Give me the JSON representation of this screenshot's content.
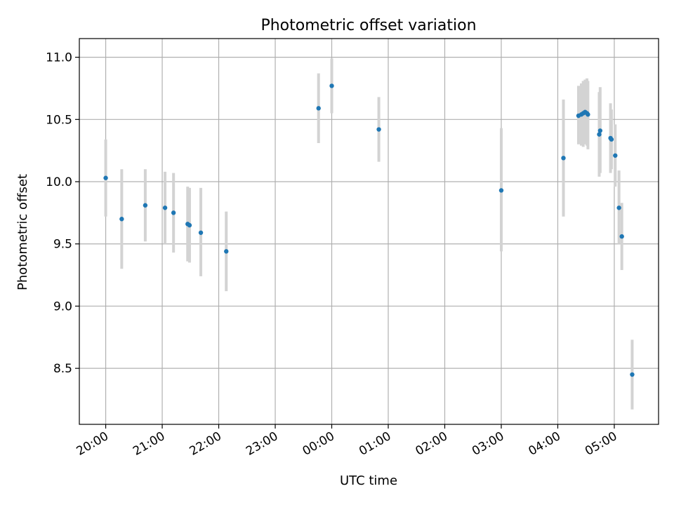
{
  "chart_data": {
    "type": "scatter",
    "title": "Photometric offset variation",
    "xlabel": "UTC time",
    "ylabel": "Photometric offset",
    "x_kind": "time-of-day, crossing midnight",
    "x_ticks": [
      "20:00",
      "21:00",
      "22:00",
      "23:00",
      "00:00",
      "01:00",
      "02:00",
      "03:00",
      "04:00",
      "05:00"
    ],
    "y_ticks": [
      "8.5",
      "9.0",
      "9.5",
      "10.0",
      "10.5",
      "11.0"
    ],
    "xlim": [
      "19:32",
      "05:47"
    ],
    "ylim": [
      8.05,
      11.15
    ],
    "grid": true,
    "colors": {
      "point": "#1f77b4",
      "errorbar": "#d3d3d3",
      "grid": "#b0b0b0"
    },
    "points": [
      {
        "time": "20:00",
        "y": 10.03,
        "ylo": 9.72,
        "yhi": 10.34
      },
      {
        "time": "20:17",
        "y": 9.7,
        "ylo": 9.3,
        "yhi": 10.1
      },
      {
        "time": "20:42",
        "y": 9.81,
        "ylo": 9.52,
        "yhi": 10.1
      },
      {
        "time": "21:03",
        "y": 9.79,
        "ylo": 9.5,
        "yhi": 10.08
      },
      {
        "time": "21:12",
        "y": 9.75,
        "ylo": 9.43,
        "yhi": 10.07
      },
      {
        "time": "21:27",
        "y": 9.66,
        "ylo": 9.36,
        "yhi": 9.96
      },
      {
        "time": "21:29",
        "y": 9.65,
        "ylo": 9.35,
        "yhi": 9.95
      },
      {
        "time": "21:41",
        "y": 9.59,
        "ylo": 9.24,
        "yhi": 9.95
      },
      {
        "time": "22:08",
        "y": 9.44,
        "ylo": 9.12,
        "yhi": 9.76
      },
      {
        "time": "23:46",
        "y": 10.59,
        "ylo": 10.31,
        "yhi": 10.87
      },
      {
        "time": "00:00",
        "y": 10.77,
        "ylo": 10.55,
        "yhi": 10.99
      },
      {
        "time": "00:50",
        "y": 10.42,
        "ylo": 10.16,
        "yhi": 10.68
      },
      {
        "time": "03:00",
        "y": 9.93,
        "ylo": 9.44,
        "yhi": 10.43
      },
      {
        "time": "04:06",
        "y": 10.19,
        "ylo": 9.72,
        "yhi": 10.66
      },
      {
        "time": "04:22",
        "y": 10.53,
        "ylo": 10.3,
        "yhi": 10.77
      },
      {
        "time": "04:25",
        "y": 10.54,
        "ylo": 10.29,
        "yhi": 10.79
      },
      {
        "time": "04:27",
        "y": 10.55,
        "ylo": 10.28,
        "yhi": 10.81
      },
      {
        "time": "04:29",
        "y": 10.56,
        "ylo": 10.3,
        "yhi": 10.82
      },
      {
        "time": "04:31",
        "y": 10.55,
        "ylo": 10.29,
        "yhi": 10.83
      },
      {
        "time": "04:32",
        "y": 10.54,
        "ylo": 10.26,
        "yhi": 10.81
      },
      {
        "time": "04:44",
        "y": 10.38,
        "ylo": 10.04,
        "yhi": 10.72
      },
      {
        "time": "04:45",
        "y": 10.41,
        "ylo": 10.07,
        "yhi": 10.76
      },
      {
        "time": "04:56",
        "y": 10.35,
        "ylo": 10.07,
        "yhi": 10.63
      },
      {
        "time": "04:57",
        "y": 10.34,
        "ylo": 10.1,
        "yhi": 10.58
      },
      {
        "time": "05:01",
        "y": 10.21,
        "ylo": 9.96,
        "yhi": 10.46
      },
      {
        "time": "05:05",
        "y": 9.79,
        "ylo": 9.5,
        "yhi": 10.09
      },
      {
        "time": "05:08",
        "y": 9.56,
        "ylo": 9.29,
        "yhi": 9.83
      },
      {
        "time": "05:19",
        "y": 8.45,
        "ylo": 8.17,
        "yhi": 8.73
      }
    ]
  }
}
